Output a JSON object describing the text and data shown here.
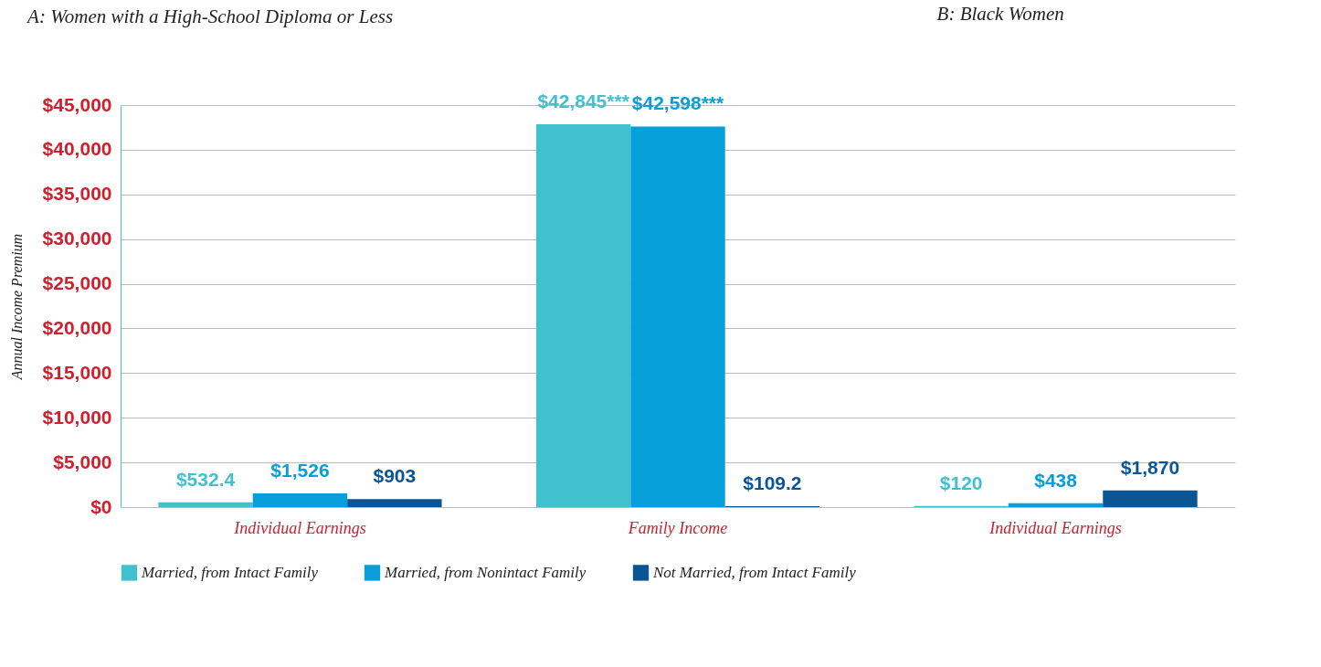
{
  "chart_data": {
    "type": "bar",
    "title": "A: Women with a High-School Diploma or Less",
    "ylabel": "Annual Income Premium",
    "categories": [
      "Individual Earnings",
      "Family Income",
      "Individual Earnings"
    ],
    "series": [
      {
        "name": "Married, from Intact Family",
        "color": "#41c1cf",
        "values": [
          532.4,
          42845,
          120
        ],
        "value_labels": [
          "$532.4",
          "$42,845***",
          "$120"
        ]
      },
      {
        "name": "Married, from Nonintact Family",
        "color": "#069fd9",
        "values": [
          1526,
          42598,
          438
        ],
        "value_labels": [
          "$1,526",
          "$42,598***",
          "$438"
        ]
      },
      {
        "name": "Not Married, from Intact Family",
        "color": "#0b5595",
        "values": [
          903,
          109.2,
          1870
        ],
        "value_labels": [
          "$903",
          "$109.2",
          "$1,870"
        ]
      }
    ],
    "ylim": [
      0,
      45000
    ],
    "yticks": [
      {
        "value": 0,
        "label": "$0"
      },
      {
        "value": 5000,
        "label": "$5,000"
      },
      {
        "value": 10000,
        "label": "$10,000"
      },
      {
        "value": 15000,
        "label": "$15,000"
      },
      {
        "value": 20000,
        "label": "$20,000"
      },
      {
        "value": 25000,
        "label": "$25,000"
      },
      {
        "value": 30000,
        "label": "$30,000"
      },
      {
        "value": 35000,
        "label": "$35,000"
      },
      {
        "value": 40000,
        "label": "$40,000"
      },
      {
        "value": 45000,
        "label": "$45,000"
      }
    ],
    "annotations": [
      "B: Black Women"
    ],
    "grid": "y",
    "legend": "bottom"
  }
}
